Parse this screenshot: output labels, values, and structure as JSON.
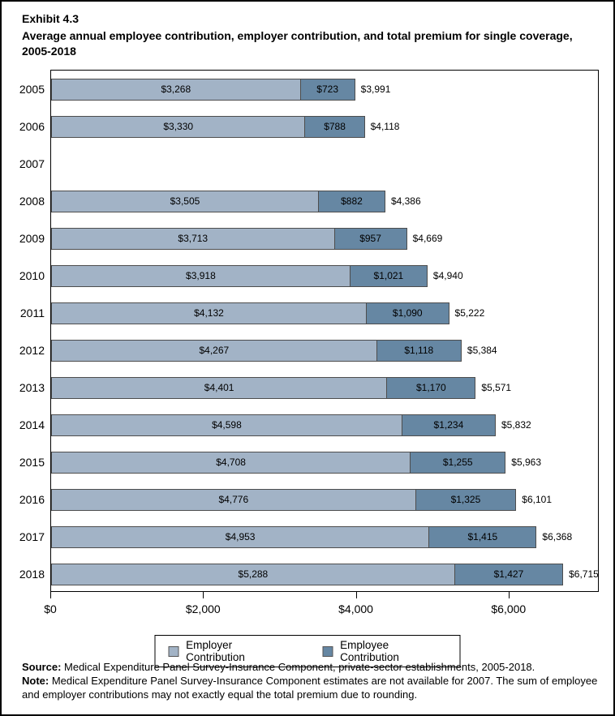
{
  "header": {
    "exhibit_label": "Exhibit 4.3",
    "title": "Average annual employee contribution, employer contribution, and total premium for single coverage, 2005-2018"
  },
  "chart_data": {
    "type": "bar",
    "orientation": "horizontal",
    "stacked": true,
    "title": "Average annual employee contribution, employer contribution, and total premium for single coverage, 2005-2018",
    "categories": [
      "2005",
      "2006",
      "2007",
      "2008",
      "2009",
      "2010",
      "2011",
      "2012",
      "2013",
      "2014",
      "2015",
      "2016",
      "2017",
      "2018"
    ],
    "series": [
      {
        "name": "Employer Contribution",
        "color": "#a2b3c6",
        "values": [
          3268,
          3330,
          null,
          3505,
          3713,
          3918,
          4132,
          4267,
          4401,
          4598,
          4708,
          4776,
          4953,
          5288
        ]
      },
      {
        "name": "Employee Contribution",
        "color": "#6687a3",
        "values": [
          723,
          788,
          null,
          882,
          957,
          1021,
          1090,
          1118,
          1170,
          1234,
          1255,
          1325,
          1415,
          1427
        ]
      }
    ],
    "totals": [
      3991,
      4118,
      null,
      4386,
      4669,
      4940,
      5222,
      5384,
      5571,
      5832,
      5963,
      6101,
      6368,
      6715
    ],
    "x_axis": {
      "ticks": [
        0,
        2000,
        4000,
        6000
      ],
      "tick_labels": [
        "$0",
        "$2,000",
        "$4,000",
        "$6,000"
      ],
      "max": 7160
    },
    "legend": {
      "position": "bottom",
      "entries": [
        "Employer Contribution",
        "Employee Contribution"
      ]
    },
    "missing_data_years": [
      "2007"
    ],
    "grid": false
  },
  "footer": {
    "source_label": "Source:",
    "source_text": " Medical Expenditure Panel Survey-Insurance Component, private-sector establishments, 2005-2018.",
    "note_label": "Note:",
    "note_text": " Medical Expenditure Panel Survey-Insurance Component estimates are not available for 2007. The sum of employee and employer contributions may not exactly equal the total premium due to rounding."
  },
  "colors": {
    "employer_fill": "#a2b3c6",
    "employee_fill": "#6687a3",
    "bar_border": "#4d4d4d",
    "frame": "#000000",
    "text": "#000000"
  }
}
